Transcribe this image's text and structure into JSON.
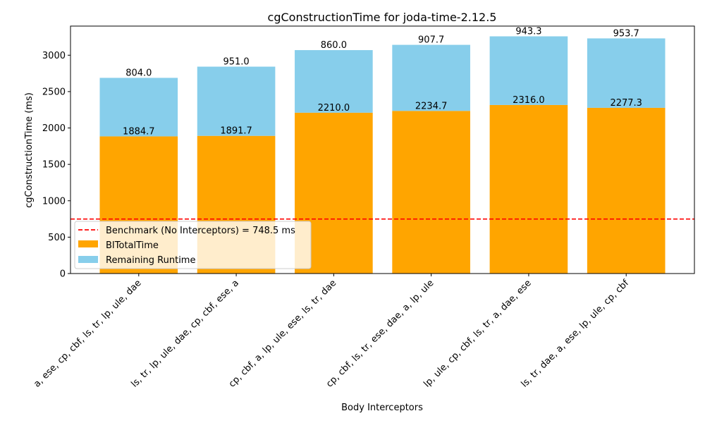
{
  "chart_data": {
    "type": "bar",
    "title": "cgConstructionTime for joda-time-2.12.5",
    "xlabel": "Body Interceptors",
    "ylabel": "cgConstructionTime (ms)",
    "ylim": [
      0,
      3400
    ],
    "yticks": [
      0,
      500,
      1000,
      1500,
      2000,
      2500,
      3000
    ],
    "grid": false,
    "legend_position": "lower-left",
    "categories": [
      "a, ese, cp, cbf, ls, tr, lp, ule, dae",
      "ls, tr, lp, ule, dae, cp, cbf, ese, a",
      "cp, cbf, a, lp, ule, ese, ls, tr, dae",
      "cp, cbf, ls, tr, ese, dae, a, lp, ule",
      "lp, ule, cp, cbf, ls, tr, a, dae, ese",
      "ls, tr, dae, a, ese, lp, ule, cp, cbf"
    ],
    "series": [
      {
        "name": "BITotalTime",
        "color": "#ffa500",
        "values": [
          1884.7,
          1891.7,
          2210.0,
          2234.7,
          2316.0,
          2277.3
        ],
        "labels": [
          "1884.7",
          "1891.7",
          "2210.0",
          "2234.7",
          "2316.0",
          "2277.3"
        ]
      },
      {
        "name": "Remaining Runtime",
        "color": "#87ceeb",
        "values": [
          804.0,
          951.0,
          860.0,
          907.7,
          943.3,
          953.7
        ],
        "labels": [
          "804.0",
          "951.0",
          "860.0",
          "907.7",
          "943.3",
          "953.7"
        ]
      }
    ],
    "benchmark": {
      "label": "Benchmark (No Interceptors) = 748.5 ms",
      "value": 748.5,
      "color": "#ff0000"
    }
  }
}
